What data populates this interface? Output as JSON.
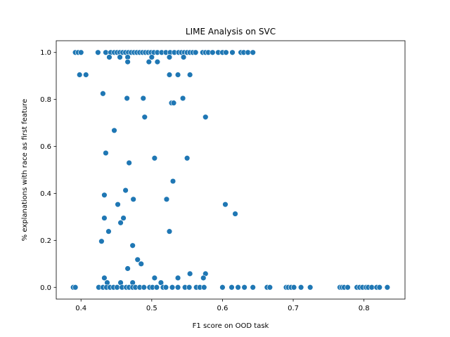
{
  "chart_data": {
    "type": "scatter",
    "title": "LIME Analysis on SVC",
    "xlabel": "F1 score on OOD task",
    "ylabel": "% explanations with race as first feature",
    "xlim": [
      0.365,
      0.858
    ],
    "ylim": [
      -0.05,
      1.05
    ],
    "xticks": [
      0.4,
      0.5,
      0.6,
      0.7,
      0.8
    ],
    "xtick_labels": [
      "0.4",
      "0.5",
      "0.6",
      "0.7",
      "0.8"
    ],
    "yticks": [
      0.0,
      0.2,
      0.4,
      0.6,
      0.8,
      1.0
    ],
    "ytick_labels": [
      "0.0",
      "0.2",
      "0.4",
      "0.6",
      "0.8",
      "1.0"
    ],
    "grid": false,
    "legend": "none",
    "marker_color": "#1f77b4",
    "series": [
      {
        "points": [
          [
            0.392,
            1.0
          ],
          [
            0.396,
            1.0
          ],
          [
            0.4,
            1.0
          ],
          [
            0.424,
            1.0
          ],
          [
            0.435,
            1.0
          ],
          [
            0.442,
            1.0
          ],
          [
            0.447,
            1.0
          ],
          [
            0.451,
            1.0
          ],
          [
            0.455,
            1.0
          ],
          [
            0.459,
            1.0
          ],
          [
            0.463,
            1.0
          ],
          [
            0.467,
            1.0
          ],
          [
            0.471,
            1.0
          ],
          [
            0.475,
            1.0
          ],
          [
            0.479,
            1.0
          ],
          [
            0.483,
            1.0
          ],
          [
            0.487,
            1.0
          ],
          [
            0.491,
            1.0
          ],
          [
            0.495,
            1.0
          ],
          [
            0.499,
            1.0
          ],
          [
            0.503,
            1.0
          ],
          [
            0.508,
            1.0
          ],
          [
            0.514,
            1.0
          ],
          [
            0.52,
            1.0
          ],
          [
            0.526,
            1.0
          ],
          [
            0.532,
            1.0
          ],
          [
            0.538,
            1.0
          ],
          [
            0.542,
            1.0
          ],
          [
            0.546,
            1.0
          ],
          [
            0.55,
            1.0
          ],
          [
            0.554,
            1.0
          ],
          [
            0.558,
            1.0
          ],
          [
            0.562,
            1.0
          ],
          [
            0.572,
            1.0
          ],
          [
            0.576,
            1.0
          ],
          [
            0.58,
            1.0
          ],
          [
            0.586,
            1.0
          ],
          [
            0.594,
            1.0
          ],
          [
            0.6,
            1.0
          ],
          [
            0.605,
            1.0
          ],
          [
            0.614,
            1.0
          ],
          [
            0.626,
            1.0
          ],
          [
            0.63,
            1.0
          ],
          [
            0.636,
            1.0
          ],
          [
            0.643,
            1.0
          ],
          [
            0.44,
            0.98
          ],
          [
            0.455,
            0.98
          ],
          [
            0.466,
            0.98
          ],
          [
            0.5,
            0.98
          ],
          [
            0.525,
            0.98
          ],
          [
            0.545,
            0.98
          ],
          [
            0.466,
            0.96
          ],
          [
            0.496,
            0.96
          ],
          [
            0.508,
            0.96
          ],
          [
            0.398,
            0.905
          ],
          [
            0.407,
            0.905
          ],
          [
            0.525,
            0.905
          ],
          [
            0.537,
            0.905
          ],
          [
            0.554,
            0.905
          ],
          [
            0.431,
            0.825
          ],
          [
            0.465,
            0.805
          ],
          [
            0.488,
            0.805
          ],
          [
            0.544,
            0.805
          ],
          [
            0.528,
            0.785
          ],
          [
            0.531,
            0.785
          ],
          [
            0.49,
            0.725
          ],
          [
            0.576,
            0.725
          ],
          [
            0.447,
            0.668
          ],
          [
            0.435,
            0.572
          ],
          [
            0.504,
            0.55
          ],
          [
            0.55,
            0.55
          ],
          [
            0.468,
            0.53
          ],
          [
            0.53,
            0.452
          ],
          [
            0.463,
            0.413
          ],
          [
            0.433,
            0.393
          ],
          [
            0.521,
            0.375
          ],
          [
            0.474,
            0.375
          ],
          [
            0.452,
            0.353
          ],
          [
            0.604,
            0.353
          ],
          [
            0.618,
            0.313
          ],
          [
            0.433,
            0.295
          ],
          [
            0.46,
            0.295
          ],
          [
            0.456,
            0.275
          ],
          [
            0.439,
            0.238
          ],
          [
            0.525,
            0.238
          ],
          [
            0.429,
            0.196
          ],
          [
            0.473,
            0.178
          ],
          [
            0.48,
            0.118
          ],
          [
            0.485,
            0.1
          ],
          [
            0.466,
            0.08
          ],
          [
            0.554,
            0.058
          ],
          [
            0.576,
            0.058
          ],
          [
            0.433,
            0.04
          ],
          [
            0.504,
            0.04
          ],
          [
            0.537,
            0.04
          ],
          [
            0.573,
            0.04
          ],
          [
            0.437,
            0.02
          ],
          [
            0.456,
            0.02
          ],
          [
            0.473,
            0.02
          ],
          [
            0.513,
            0.02
          ],
          [
            0.389,
            0.0
          ],
          [
            0.392,
            0.0
          ],
          [
            0.425,
            0.0
          ],
          [
            0.431,
            0.0
          ],
          [
            0.436,
            0.0
          ],
          [
            0.441,
            0.0
          ],
          [
            0.446,
            0.0
          ],
          [
            0.451,
            0.0
          ],
          [
            0.458,
            0.0
          ],
          [
            0.464,
            0.0
          ],
          [
            0.468,
            0.0
          ],
          [
            0.473,
            0.0
          ],
          [
            0.477,
            0.0
          ],
          [
            0.483,
            0.0
          ],
          [
            0.489,
            0.0
          ],
          [
            0.497,
            0.0
          ],
          [
            0.501,
            0.0
          ],
          [
            0.507,
            0.0
          ],
          [
            0.516,
            0.0
          ],
          [
            0.52,
            0.0
          ],
          [
            0.529,
            0.0
          ],
          [
            0.537,
            0.0
          ],
          [
            0.547,
            0.0
          ],
          [
            0.553,
            0.0
          ],
          [
            0.563,
            0.0
          ],
          [
            0.568,
            0.0
          ],
          [
            0.574,
            0.0
          ],
          [
            0.6,
            0.0
          ],
          [
            0.613,
            0.0
          ],
          [
            0.622,
            0.0
          ],
          [
            0.631,
            0.0
          ],
          [
            0.643,
            0.0
          ],
          [
            0.663,
            0.0
          ],
          [
            0.667,
            0.0
          ],
          [
            0.69,
            0.0
          ],
          [
            0.693,
            0.0
          ],
          [
            0.697,
            0.0
          ],
          [
            0.701,
            0.0
          ],
          [
            0.711,
            0.0
          ],
          [
            0.724,
            0.0
          ],
          [
            0.766,
            0.0
          ],
          [
            0.769,
            0.0
          ],
          [
            0.772,
            0.0
          ],
          [
            0.777,
            0.0
          ],
          [
            0.79,
            0.0
          ],
          [
            0.794,
            0.0
          ],
          [
            0.798,
            0.0
          ],
          [
            0.803,
            0.0
          ],
          [
            0.806,
            0.0
          ],
          [
            0.811,
            0.0
          ],
          [
            0.818,
            0.0
          ],
          [
            0.822,
            0.0
          ],
          [
            0.833,
            0.0
          ]
        ]
      }
    ]
  }
}
